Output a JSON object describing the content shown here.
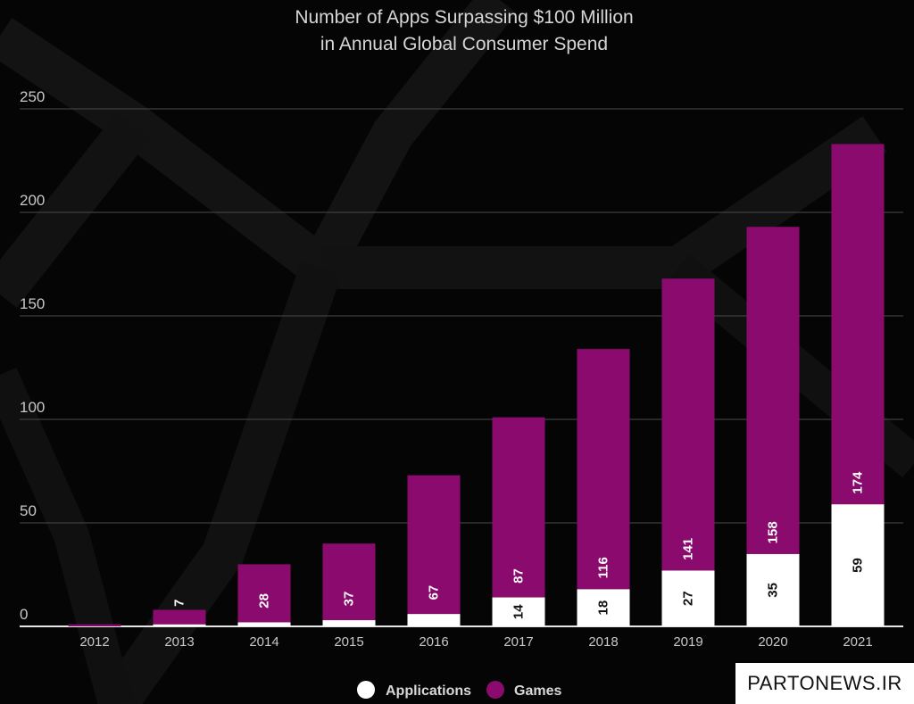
{
  "chart_data": {
    "type": "bar",
    "stacked": true,
    "title_lines": [
      "Number of Apps Surpassing $100 Million",
      "in Annual Global Consumer Spend"
    ],
    "categories": [
      "2012",
      "2013",
      "2014",
      "2015",
      "2016",
      "2017",
      "2018",
      "2019",
      "2020",
      "2021"
    ],
    "series": [
      {
        "name": "Applications",
        "color": "#ffffff",
        "values": [
          0,
          1,
          2,
          3,
          6,
          14,
          18,
          27,
          35,
          59
        ],
        "value_labels": [
          "",
          "",
          "",
          "",
          "",
          "14",
          "18",
          "27",
          "35",
          "59"
        ]
      },
      {
        "name": "Games",
        "color": "#8a0a6e",
        "values": [
          1,
          7,
          28,
          37,
          67,
          87,
          116,
          141,
          158,
          174
        ],
        "value_labels": [
          "",
          "7",
          "28",
          "37",
          "67",
          "87",
          "116",
          "141",
          "158",
          "174"
        ]
      }
    ],
    "yticks": [
      "0",
      "50",
      "100",
      "150",
      "200",
      "250"
    ],
    "ylim": [
      0,
      250
    ],
    "grid": true,
    "legend_position": "bottom-center"
  },
  "watermark": "PARTONEWS.IR"
}
